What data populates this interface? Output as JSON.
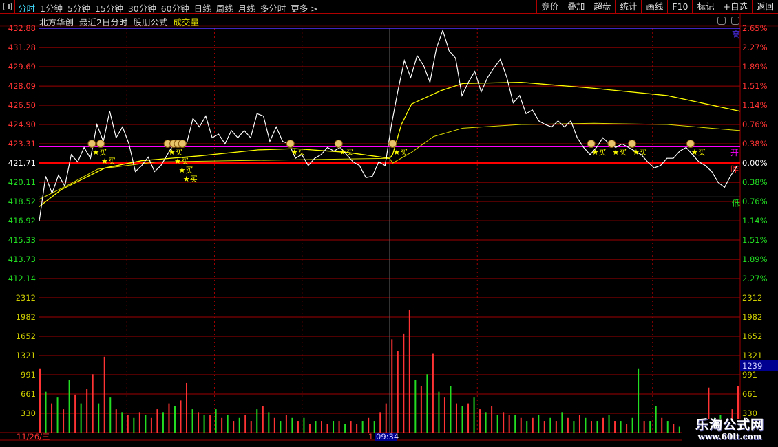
{
  "toolbar": {
    "tabs": [
      "分时",
      "1分钟",
      "5分钟",
      "15分钟",
      "30分钟",
      "60分钟",
      "日线",
      "周线",
      "月线",
      "多分时",
      "更多 >"
    ],
    "active": 0,
    "right_buttons": [
      "竞价",
      "叠加",
      "超盘",
      "统计",
      "画线",
      "F10",
      "标记",
      "+自选",
      "返回"
    ]
  },
  "title": {
    "stock": "北方华创",
    "mode": "最近2日分时",
    "formula": "股朋公式",
    "indicator": "成交量"
  },
  "colors": {
    "up": "#ff3333",
    "down": "#22dd22",
    "grid": "#a00000",
    "price": "#ffffff",
    "avg": "#ffff00",
    "open_line": "#ff00ff",
    "high_line": "#5533ff",
    "prev_close_line": "#ff0000"
  },
  "markers": {
    "high": "高",
    "open": "开",
    "prev_close": "昨",
    "low": "低",
    "buy": "★买",
    "bag_icon": "money-bag-icon"
  },
  "axis": {
    "date": "11/26/三",
    "cursor_time": "09:34",
    "cursor_prefix": "1",
    "volume_readout": "1239"
  },
  "watermark": {
    "line1": "乐淘公式网",
    "line2": "www.60lt.com"
  },
  "chart_data": {
    "type": "line",
    "price_ticks": [
      432.88,
      431.28,
      429.69,
      428.09,
      426.5,
      424.9,
      423.31,
      421.71,
      420.11,
      418.52,
      416.92,
      415.33,
      413.73,
      412.14
    ],
    "pct_ticks": [
      "2.65%",
      "2.27%",
      "1.89%",
      "1.51%",
      "1.14%",
      "0.76%",
      "0.38%",
      "0.00%",
      "0.38%",
      "0.76%",
      "1.14%",
      "1.51%",
      "1.89%",
      "2.27%"
    ],
    "prev_close": 421.71,
    "open": 423.08,
    "low_line": 418.9,
    "high": 432.88,
    "volume_ticks": [
      2312,
      1982,
      1652,
      1321,
      991,
      661,
      330
    ],
    "ylim": [
      412.14,
      432.88
    ],
    "volume_ylim": [
      0,
      2312
    ],
    "sessions": 2,
    "minutes_per_session": 240,
    "price": [
      416.9,
      420.6,
      419.2,
      420.7,
      419.8,
      422.4,
      421.8,
      423.0,
      422.1,
      424.9,
      423.5,
      426.0,
      423.8,
      424.7,
      423.3,
      421.0,
      421.5,
      422.2,
      421.0,
      421.5,
      422.4,
      423.3,
      423.5,
      423.3,
      425.4,
      424.7,
      425.6,
      423.8,
      424.1,
      423.3,
      424.4,
      423.8,
      424.4,
      423.8,
      425.8,
      425.6,
      423.5,
      424.7,
      423.5,
      423.3,
      422.1,
      422.4,
      421.5,
      422.1,
      422.4,
      423.0,
      422.7,
      423.0,
      422.4,
      421.8,
      421.5,
      420.5,
      420.6,
      421.8,
      421.5,
      424.9,
      427.7,
      430.2,
      428.8,
      430.6,
      429.8,
      428.4,
      431.2,
      432.7,
      431.0,
      430.4,
      427.3,
      428.4,
      429.3,
      427.6,
      428.8,
      429.6,
      430.3,
      428.8,
      426.7,
      427.3,
      425.8,
      426.1,
      425.2,
      424.9,
      424.7,
      425.2,
      424.7,
      425.2,
      423.8,
      423.0,
      422.4,
      423.0,
      423.8,
      423.3,
      423.0,
      423.3,
      423.0,
      422.7,
      422.4,
      421.8,
      421.3,
      421.5,
      422.1,
      422.1,
      422.7,
      423.0,
      422.4,
      421.8,
      421.5,
      421.0,
      420.1,
      419.7,
      420.7,
      421.5
    ],
    "avg_line": [
      [
        0,
        418.1
      ],
      [
        15,
        419.5
      ],
      [
        30,
        420.4
      ],
      [
        45,
        421.3
      ],
      [
        70,
        421.9
      ],
      [
        110,
        422.3
      ],
      [
        150,
        422.8
      ],
      [
        175,
        422.9
      ],
      [
        210,
        422.6
      ],
      [
        240,
        422.1
      ],
      [
        242,
        422.4
      ],
      [
        248,
        424.9
      ],
      [
        255,
        426.6
      ],
      [
        275,
        427.7
      ],
      [
        290,
        428.3
      ],
      [
        330,
        428.4
      ],
      [
        380,
        427.9
      ],
      [
        430,
        427.3
      ],
      [
        480,
        426.0
      ]
    ],
    "ma_line": [
      [
        0,
        418.7
      ],
      [
        20,
        419.9
      ],
      [
        40,
        421.2
      ],
      [
        80,
        421.8
      ],
      [
        240,
        422.1
      ],
      [
        242,
        421.7
      ],
      [
        255,
        422.6
      ],
      [
        270,
        423.9
      ],
      [
        290,
        424.6
      ],
      [
        330,
        424.9
      ],
      [
        380,
        425.0
      ],
      [
        430,
        424.9
      ],
      [
        480,
        424.4
      ]
    ],
    "buy_signals_minutes": [
      36,
      42,
      88,
      92,
      95,
      98,
      172,
      205,
      242,
      378,
      392,
      406,
      446
    ],
    "volume": [
      1100,
      -700,
      500,
      -600,
      400,
      -900,
      650,
      -500,
      750,
      1000,
      -500,
      1300,
      -600,
      400,
      -350,
      300,
      -250,
      350,
      -300,
      250,
      400,
      -350,
      500,
      -450,
      550,
      850,
      -400,
      350,
      -300,
      300,
      -400,
      250,
      -300,
      200,
      -250,
      300,
      200,
      -400,
      450,
      -350,
      250,
      -200,
      300,
      -250,
      200,
      -250,
      150,
      -200,
      200,
      150,
      -200,
      200,
      -150,
      200,
      150,
      -200,
      250,
      -200,
      350,
      500,
      1600,
      1400,
      1700,
      2100,
      -900,
      800,
      -1000,
      1350,
      -700,
      600,
      -800,
      500,
      -450,
      500,
      -600,
      400,
      -350,
      450,
      -300,
      350,
      300,
      -300,
      250,
      -200,
      250,
      -300,
      200,
      -250,
      200,
      -350,
      250,
      -200,
      300,
      -250,
      200,
      -200,
      250,
      -300,
      200,
      -200,
      150,
      -250,
      -1100,
      200,
      -200,
      -450,
      250,
      -200,
      150,
      -100,
      100,
      -150,
      100,
      150,
      770,
      -250,
      -300,
      200,
      400,
      800
    ]
  }
}
